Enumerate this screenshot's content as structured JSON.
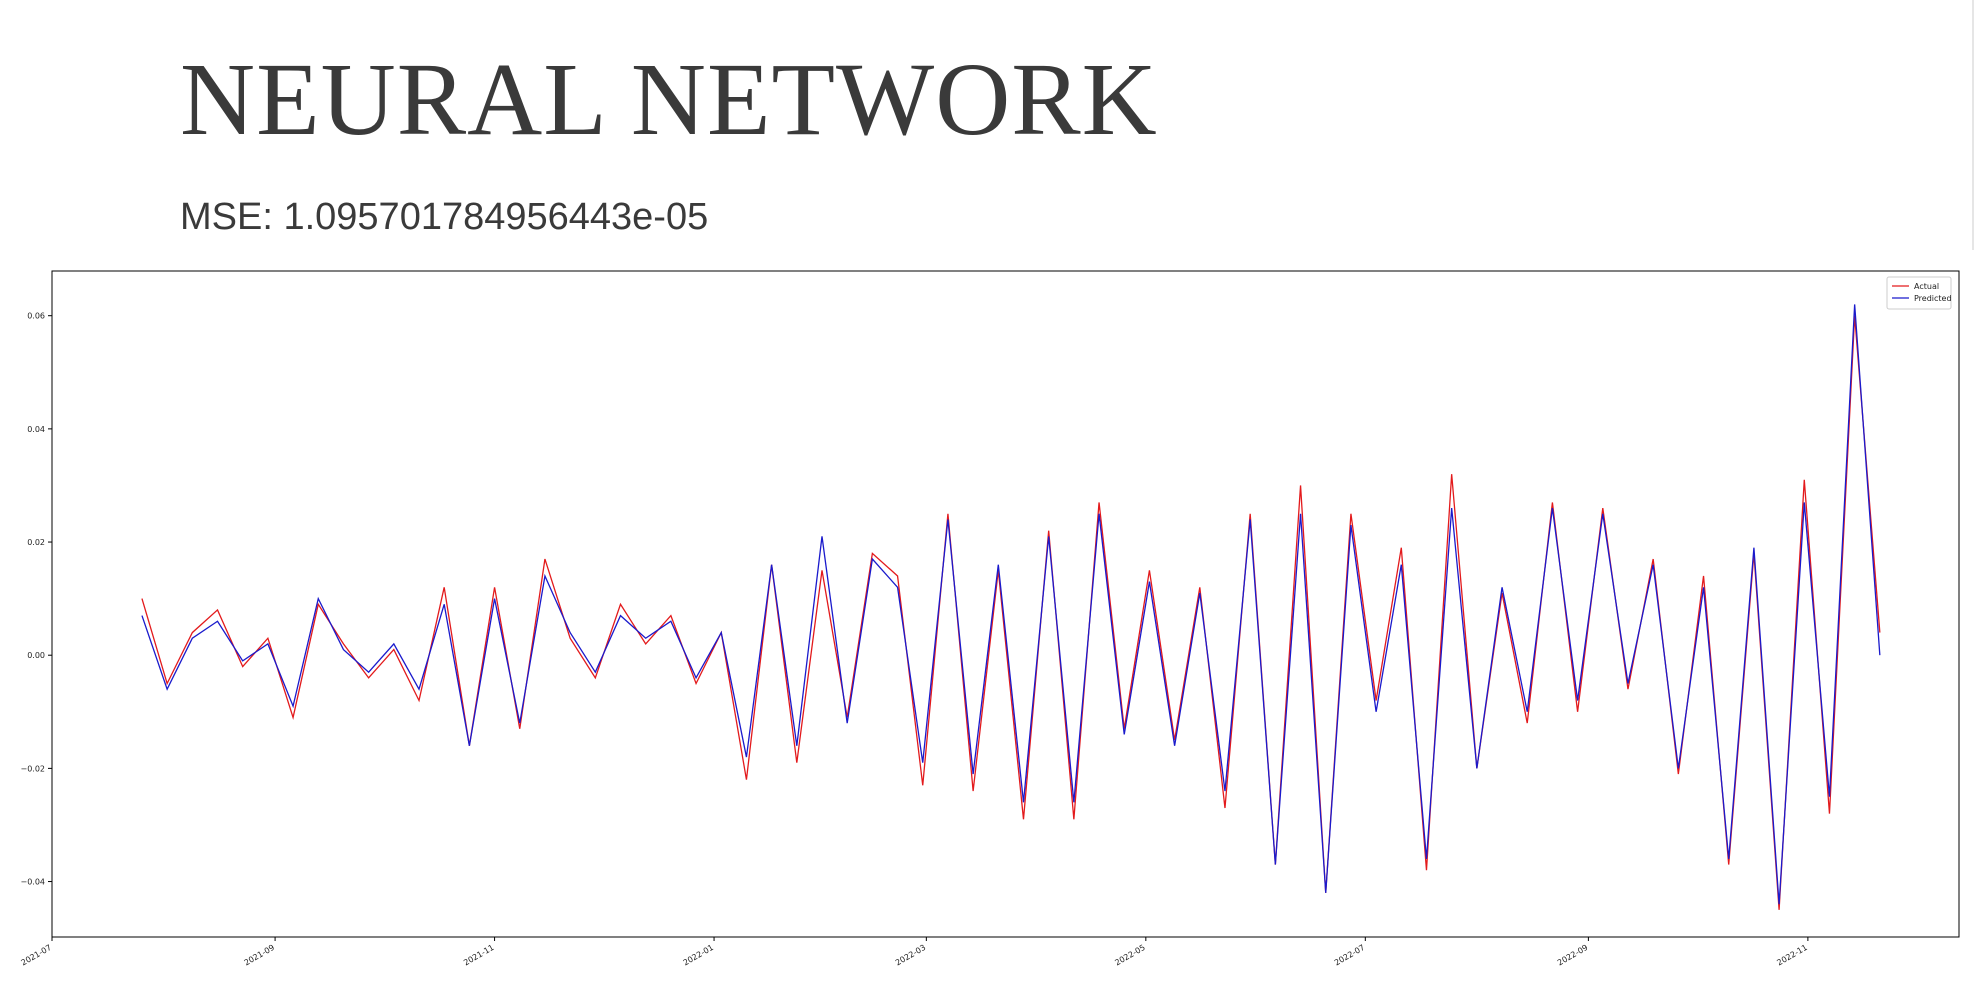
{
  "title": "NEURAL NETWORK",
  "subtitle": "MSE: 1.095701784956443e-05",
  "chart_data": {
    "type": "line",
    "x": [
      "2021-07-26",
      "2021-08-02",
      "2021-08-09",
      "2021-08-16",
      "2021-08-23",
      "2021-08-30",
      "2021-09-06",
      "2021-09-13",
      "2021-09-20",
      "2021-09-27",
      "2021-10-04",
      "2021-10-11",
      "2021-10-18",
      "2021-10-25",
      "2021-11-01",
      "2021-11-08",
      "2021-11-15",
      "2021-11-22",
      "2021-11-29",
      "2021-12-06",
      "2021-12-13",
      "2021-12-20",
      "2021-12-27",
      "2022-01-03",
      "2022-01-10",
      "2022-01-17",
      "2022-01-24",
      "2022-01-31",
      "2022-02-07",
      "2022-02-14",
      "2022-02-21",
      "2022-02-28",
      "2022-03-07",
      "2022-03-14",
      "2022-03-21",
      "2022-03-28",
      "2022-04-04",
      "2022-04-11",
      "2022-04-18",
      "2022-04-25",
      "2022-05-02",
      "2022-05-09",
      "2022-05-16",
      "2022-05-23",
      "2022-05-30",
      "2022-06-06",
      "2022-06-13",
      "2022-06-20",
      "2022-06-27",
      "2022-07-04",
      "2022-07-11",
      "2022-07-18",
      "2022-07-25",
      "2022-08-01",
      "2022-08-08",
      "2022-08-15",
      "2022-08-22",
      "2022-08-29",
      "2022-09-05",
      "2022-09-12",
      "2022-09-19",
      "2022-09-26",
      "2022-10-03",
      "2022-10-10",
      "2022-10-17",
      "2022-10-24",
      "2022-10-31",
      "2022-11-07",
      "2022-11-14",
      "2022-11-21"
    ],
    "series": [
      {
        "name": "Actual",
        "color": "#e31a1c",
        "values": [
          0.01,
          -0.005,
          0.004,
          0.008,
          -0.002,
          0.003,
          -0.011,
          0.009,
          0.002,
          -0.004,
          0.001,
          -0.008,
          0.012,
          -0.016,
          0.012,
          -0.013,
          0.017,
          0.003,
          -0.004,
          0.009,
          0.002,
          0.007,
          -0.005,
          0.004,
          -0.022,
          0.016,
          -0.019,
          0.015,
          -0.011,
          0.018,
          0.014,
          -0.023,
          0.025,
          -0.024,
          0.015,
          -0.029,
          0.022,
          -0.029,
          0.027,
          -0.013,
          0.015,
          -0.015,
          0.012,
          -0.027,
          0.025,
          -0.037,
          0.03,
          -0.042,
          0.025,
          -0.008,
          0.019,
          -0.038,
          0.032,
          -0.02,
          0.011,
          -0.012,
          0.027,
          -0.01,
          0.026,
          -0.006,
          0.017,
          -0.021,
          0.014,
          -0.037,
          0.018,
          -0.045,
          0.031,
          -0.028,
          0.06,
          0.004
        ]
      },
      {
        "name": "Predicted",
        "color": "#1a1acc",
        "values": [
          0.007,
          -0.006,
          0.003,
          0.006,
          -0.001,
          0.002,
          -0.009,
          0.01,
          0.001,
          -0.003,
          0.002,
          -0.006,
          0.009,
          -0.016,
          0.01,
          -0.012,
          0.014,
          0.004,
          -0.003,
          0.007,
          0.003,
          0.006,
          -0.004,
          0.004,
          -0.018,
          0.016,
          -0.016,
          0.021,
          -0.012,
          0.017,
          0.012,
          -0.019,
          0.024,
          -0.021,
          0.016,
          -0.026,
          0.021,
          -0.026,
          0.025,
          -0.014,
          0.013,
          -0.016,
          0.011,
          -0.024,
          0.024,
          -0.037,
          0.025,
          -0.042,
          0.023,
          -0.01,
          0.016,
          -0.036,
          0.026,
          -0.02,
          0.012,
          -0.01,
          0.026,
          -0.008,
          0.025,
          -0.005,
          0.016,
          -0.02,
          0.012,
          -0.036,
          0.019,
          -0.044,
          0.027,
          -0.025,
          0.062,
          0.0
        ]
      }
    ],
    "xlim": [
      "2021-07-01",
      "2022-12-13"
    ],
    "xticks": [
      "2021-07",
      "2021-09",
      "2021-11",
      "2022-01",
      "2022-03",
      "2022-05",
      "2022-07",
      "2022-09",
      "2022-11"
    ],
    "ylim": [
      -0.0498,
      0.0679
    ],
    "yticks": [
      {
        "value": -0.04,
        "label": "−0.04"
      },
      {
        "value": -0.02,
        "label": "−0.02"
      },
      {
        "value": 0,
        "label": "0.00"
      },
      {
        "value": 0.02,
        "label": "0.02"
      },
      {
        "value": 0.04,
        "label": "0.04"
      },
      {
        "value": 0.06,
        "label": "0.06"
      }
    ],
    "legend": "upper right",
    "grid": false
  }
}
